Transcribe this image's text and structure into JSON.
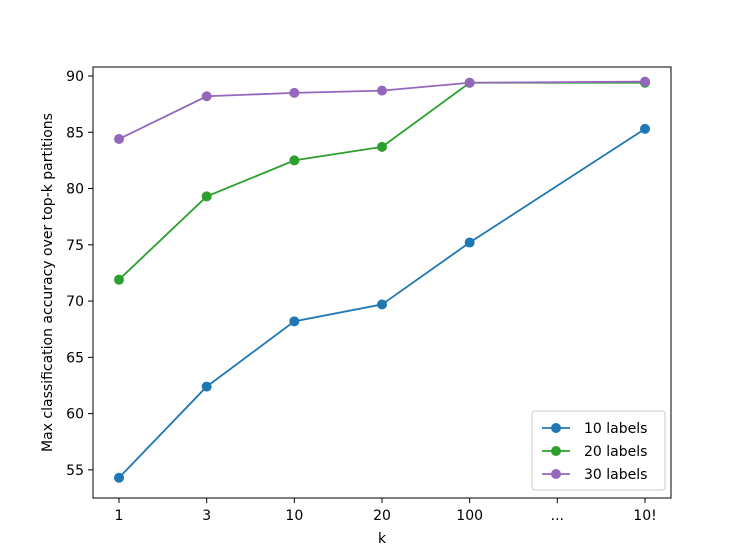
{
  "chart_data": {
    "type": "line",
    "xlabel": "k",
    "ylabel": "Max classification accuracy over top-k partitions",
    "categories": [
      "1",
      "3",
      "10",
      "20",
      "100",
      "...",
      "10!"
    ],
    "ylim": [
      52.5,
      90.8
    ],
    "yticks": [
      55,
      60,
      65,
      70,
      75,
      80,
      85,
      90
    ],
    "legend_position": "lower-right",
    "grid": false,
    "series": [
      {
        "name": "10 labels",
        "color": "#1f77b4",
        "points": [
          {
            "x": "1",
            "y": 54.3
          },
          {
            "x": "3",
            "y": 62.4
          },
          {
            "x": "10",
            "y": 68.2
          },
          {
            "x": "20",
            "y": 69.7
          },
          {
            "x": "100",
            "y": 75.2
          },
          {
            "x": "10!",
            "y": 85.3
          }
        ]
      },
      {
        "name": "20 labels",
        "color": "#2ca02c",
        "points": [
          {
            "x": "1",
            "y": 71.9
          },
          {
            "x": "3",
            "y": 79.3
          },
          {
            "x": "10",
            "y": 82.5
          },
          {
            "x": "20",
            "y": 83.7
          },
          {
            "x": "100",
            "y": 89.4
          },
          {
            "x": "10!",
            "y": 89.4
          }
        ]
      },
      {
        "name": "30 labels",
        "color": "#9467bd",
        "points": [
          {
            "x": "1",
            "y": 84.4
          },
          {
            "x": "3",
            "y": 88.2
          },
          {
            "x": "10",
            "y": 88.5
          },
          {
            "x": "20",
            "y": 88.7
          },
          {
            "x": "100",
            "y": 89.4
          },
          {
            "x": "10!",
            "y": 89.5
          }
        ]
      }
    ]
  }
}
